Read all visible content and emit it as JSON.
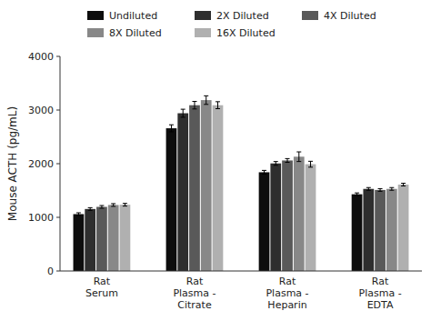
{
  "chart_data": {
    "type": "bar",
    "categories": [
      "Rat\nSerum",
      "Rat\nPlasma -\nCitrate",
      "Rat\nPlasma -\nHeparin",
      "Rat\nPlasma -\nEDTA"
    ],
    "series": [
      {
        "name": "Undiluted",
        "color": "#0d0d0d",
        "values": [
          1060,
          2660,
          1840,
          1430
        ],
        "errors": [
          25,
          65,
          35,
          25
        ]
      },
      {
        "name": "2X Diluted",
        "color": "#2e2e2e",
        "values": [
          1155,
          2940,
          2005,
          1530
        ],
        "errors": [
          25,
          75,
          35,
          25
        ]
      },
      {
        "name": "4X Diluted",
        "color": "#595959",
        "values": [
          1195,
          3090,
          2060,
          1510
        ],
        "errors": [
          25,
          70,
          35,
          25
        ]
      },
      {
        "name": "8X Diluted",
        "color": "#888888",
        "values": [
          1230,
          3185,
          2130,
          1530
        ],
        "errors": [
          25,
          80,
          90,
          25
        ]
      },
      {
        "name": "16X Diluted",
        "color": "#b0b0b0",
        "values": [
          1235,
          3090,
          1990,
          1610
        ],
        "errors": [
          25,
          65,
          55,
          25
        ]
      }
    ],
    "y_label": "Mouse ACTH (pg/mL)",
    "ylim": [
      0,
      4000
    ],
    "yticks": [
      0,
      1000,
      2000,
      3000,
      4000
    ],
    "grid": false,
    "legend": "top"
  }
}
